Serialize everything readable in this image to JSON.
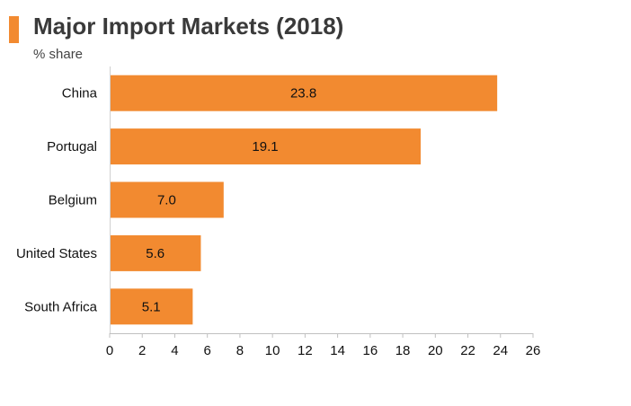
{
  "chart_data": {
    "type": "bar",
    "orientation": "horizontal",
    "title": "Major Import Markets (2018)",
    "subtitle": "% share",
    "categories": [
      "China",
      "Portugal",
      "Belgium",
      "United States",
      "South Africa"
    ],
    "values": [
      23.8,
      19.1,
      7.0,
      5.6,
      5.1
    ],
    "value_labels": [
      "23.8",
      "19.1",
      "7.0",
      "5.6",
      "5.1"
    ],
    "xlim": [
      0,
      26
    ],
    "xticks": [
      0,
      2,
      4,
      6,
      8,
      10,
      12,
      14,
      16,
      18,
      20,
      22,
      24,
      26
    ],
    "grid": false,
    "bar_color": "#f28a30",
    "accent_color": "#f28a30"
  }
}
